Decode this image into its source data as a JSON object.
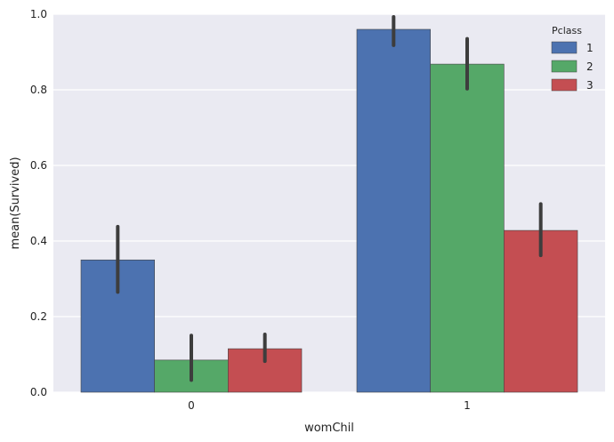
{
  "chart_data": {
    "type": "bar",
    "xlabel": "womChil",
    "ylabel": "mean(Survived)",
    "categories": [
      "0",
      "1"
    ],
    "ylim": [
      0,
      1.0
    ],
    "yticks": [
      "0.0",
      "0.2",
      "0.4",
      "0.6",
      "0.8",
      "1.0"
    ],
    "grid": true,
    "legend": {
      "title": "Pclass",
      "placement": "top-right"
    },
    "series": [
      {
        "name": "1",
        "color": "#4c72b0",
        "values": [
          0.35,
          0.96
        ],
        "ci_low": [
          0.265,
          0.918
        ],
        "ci_high": [
          0.438,
          0.993
        ]
      },
      {
        "name": "2",
        "color": "#55a868",
        "values": [
          0.085,
          0.868
        ],
        "ci_low": [
          0.032,
          0.803
        ],
        "ci_high": [
          0.15,
          0.935
        ]
      },
      {
        "name": "3",
        "color": "#c44e52",
        "values": [
          0.115,
          0.428
        ],
        "ci_low": [
          0.082,
          0.362
        ],
        "ci_high": [
          0.153,
          0.498
        ]
      }
    ]
  }
}
